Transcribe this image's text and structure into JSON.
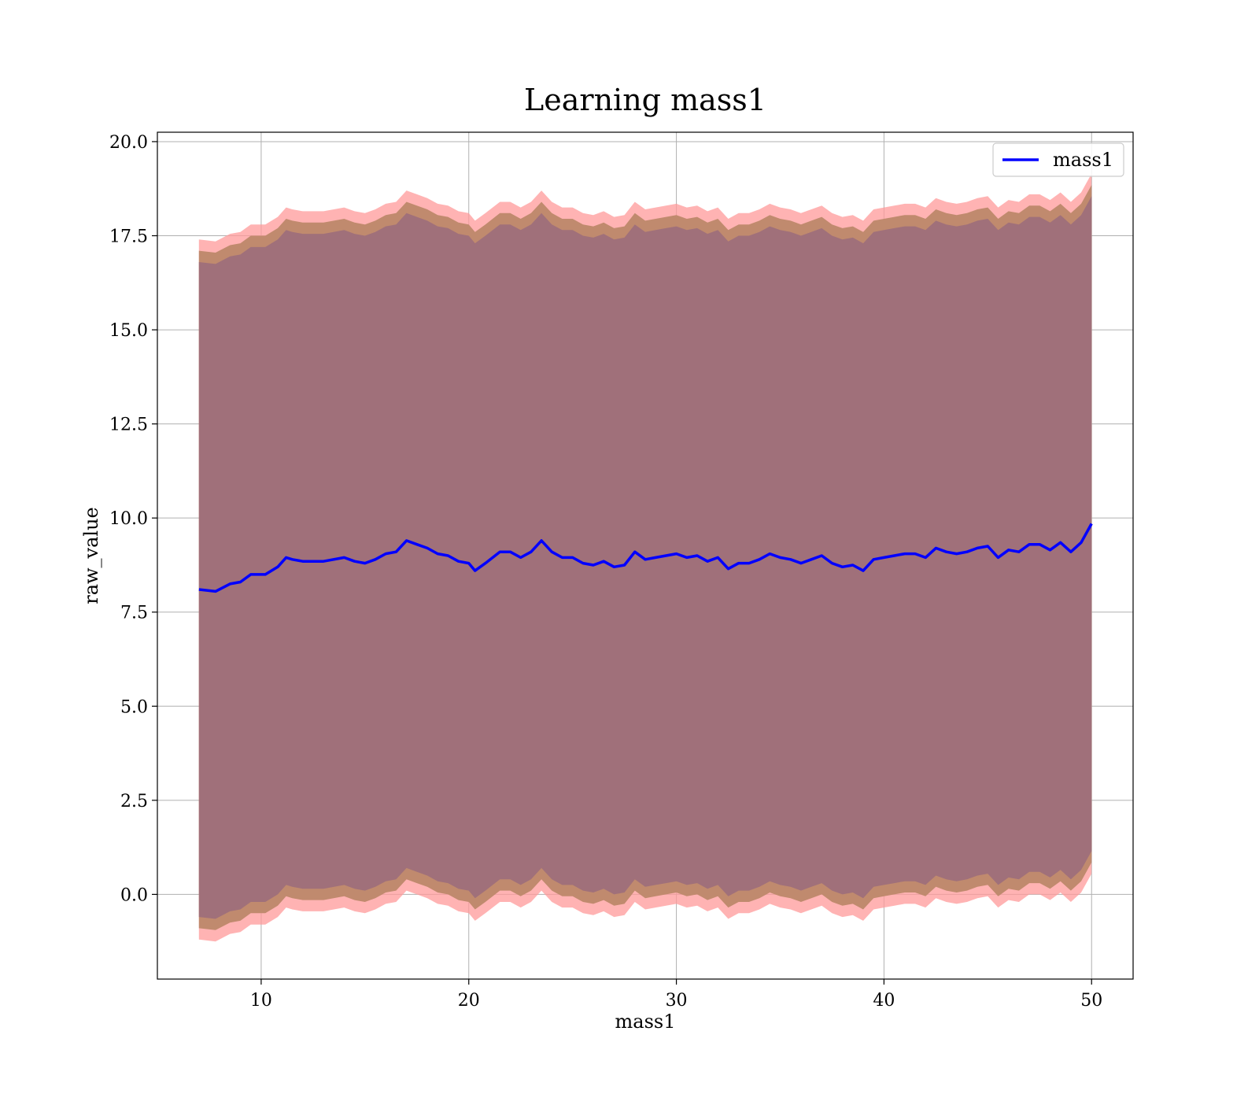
{
  "chart_data": {
    "type": "line",
    "title": "Learning mass1",
    "xlabel": "mass1",
    "ylabel": "raw_value",
    "xlim": [
      5,
      52
    ],
    "ylim": [
      -2.25,
      20.25
    ],
    "xticks": [
      10,
      20,
      30,
      40,
      50
    ],
    "yticks": [
      0.0,
      2.5,
      5.0,
      7.5,
      10.0,
      12.5,
      15.0,
      17.5,
      20.0
    ],
    "xtick_labels": [
      "10",
      "20",
      "30",
      "40",
      "50"
    ],
    "ytick_labels": [
      "0.0",
      "2.5",
      "5.0",
      "7.5",
      "10.0",
      "12.5",
      "15.0",
      "17.5",
      "20.0"
    ],
    "grid": true,
    "legend": {
      "placement": "top-right",
      "entries": [
        "mass1"
      ]
    },
    "colors": {
      "line": "#0000ff",
      "band_outer": "#ff9a9a",
      "band_mid": "#c08a6e",
      "band_inner": "#a0707a"
    },
    "band_half_widths": {
      "inner": 8.7,
      "mid": 9.0,
      "outer": 9.3
    },
    "series": [
      {
        "name": "mass1",
        "x": [
          7.0,
          7.8,
          8.5,
          9.0,
          9.5,
          10.2,
          10.8,
          11.2,
          11.5,
          12.0,
          13.0,
          14.0,
          14.5,
          15.0,
          15.5,
          16.0,
          16.5,
          17.0,
          17.5,
          18.0,
          18.5,
          19.0,
          19.5,
          20.0,
          20.3,
          20.8,
          21.5,
          22.0,
          22.5,
          23.0,
          23.5,
          24.0,
          24.5,
          25.0,
          25.5,
          26.0,
          26.5,
          27.0,
          27.5,
          28.0,
          28.5,
          29.0,
          29.5,
          30.0,
          30.5,
          31.0,
          31.5,
          32.0,
          32.5,
          33.0,
          33.5,
          34.0,
          34.5,
          35.0,
          35.5,
          36.0,
          36.5,
          37.0,
          37.5,
          38.0,
          38.5,
          39.0,
          39.5,
          40.0,
          40.5,
          41.0,
          41.5,
          42.0,
          42.5,
          43.0,
          43.5,
          44.0,
          44.5,
          45.0,
          45.5,
          46.0,
          46.5,
          47.0,
          47.5,
          48.0,
          48.5,
          49.0,
          49.5,
          50.0
        ],
        "y": [
          8.1,
          8.05,
          8.25,
          8.3,
          8.5,
          8.5,
          8.7,
          8.95,
          8.9,
          8.85,
          8.85,
          8.95,
          8.85,
          8.8,
          8.9,
          9.05,
          9.1,
          9.4,
          9.3,
          9.2,
          9.05,
          9.0,
          8.85,
          8.8,
          8.6,
          8.8,
          9.1,
          9.1,
          8.95,
          9.1,
          9.4,
          9.1,
          8.95,
          8.95,
          8.8,
          8.75,
          8.85,
          8.7,
          8.75,
          9.1,
          8.9,
          8.95,
          9.0,
          9.05,
          8.95,
          9.0,
          8.85,
          8.95,
          8.65,
          8.8,
          8.8,
          8.9,
          9.05,
          8.95,
          8.9,
          8.8,
          8.9,
          9.0,
          8.8,
          8.7,
          8.75,
          8.6,
          8.9,
          8.95,
          9.0,
          9.05,
          9.05,
          8.95,
          9.2,
          9.1,
          9.05,
          9.1,
          9.2,
          9.25,
          8.95,
          9.15,
          9.1,
          9.3,
          9.3,
          9.15,
          9.35,
          9.1,
          9.35,
          9.85
        ]
      }
    ]
  }
}
